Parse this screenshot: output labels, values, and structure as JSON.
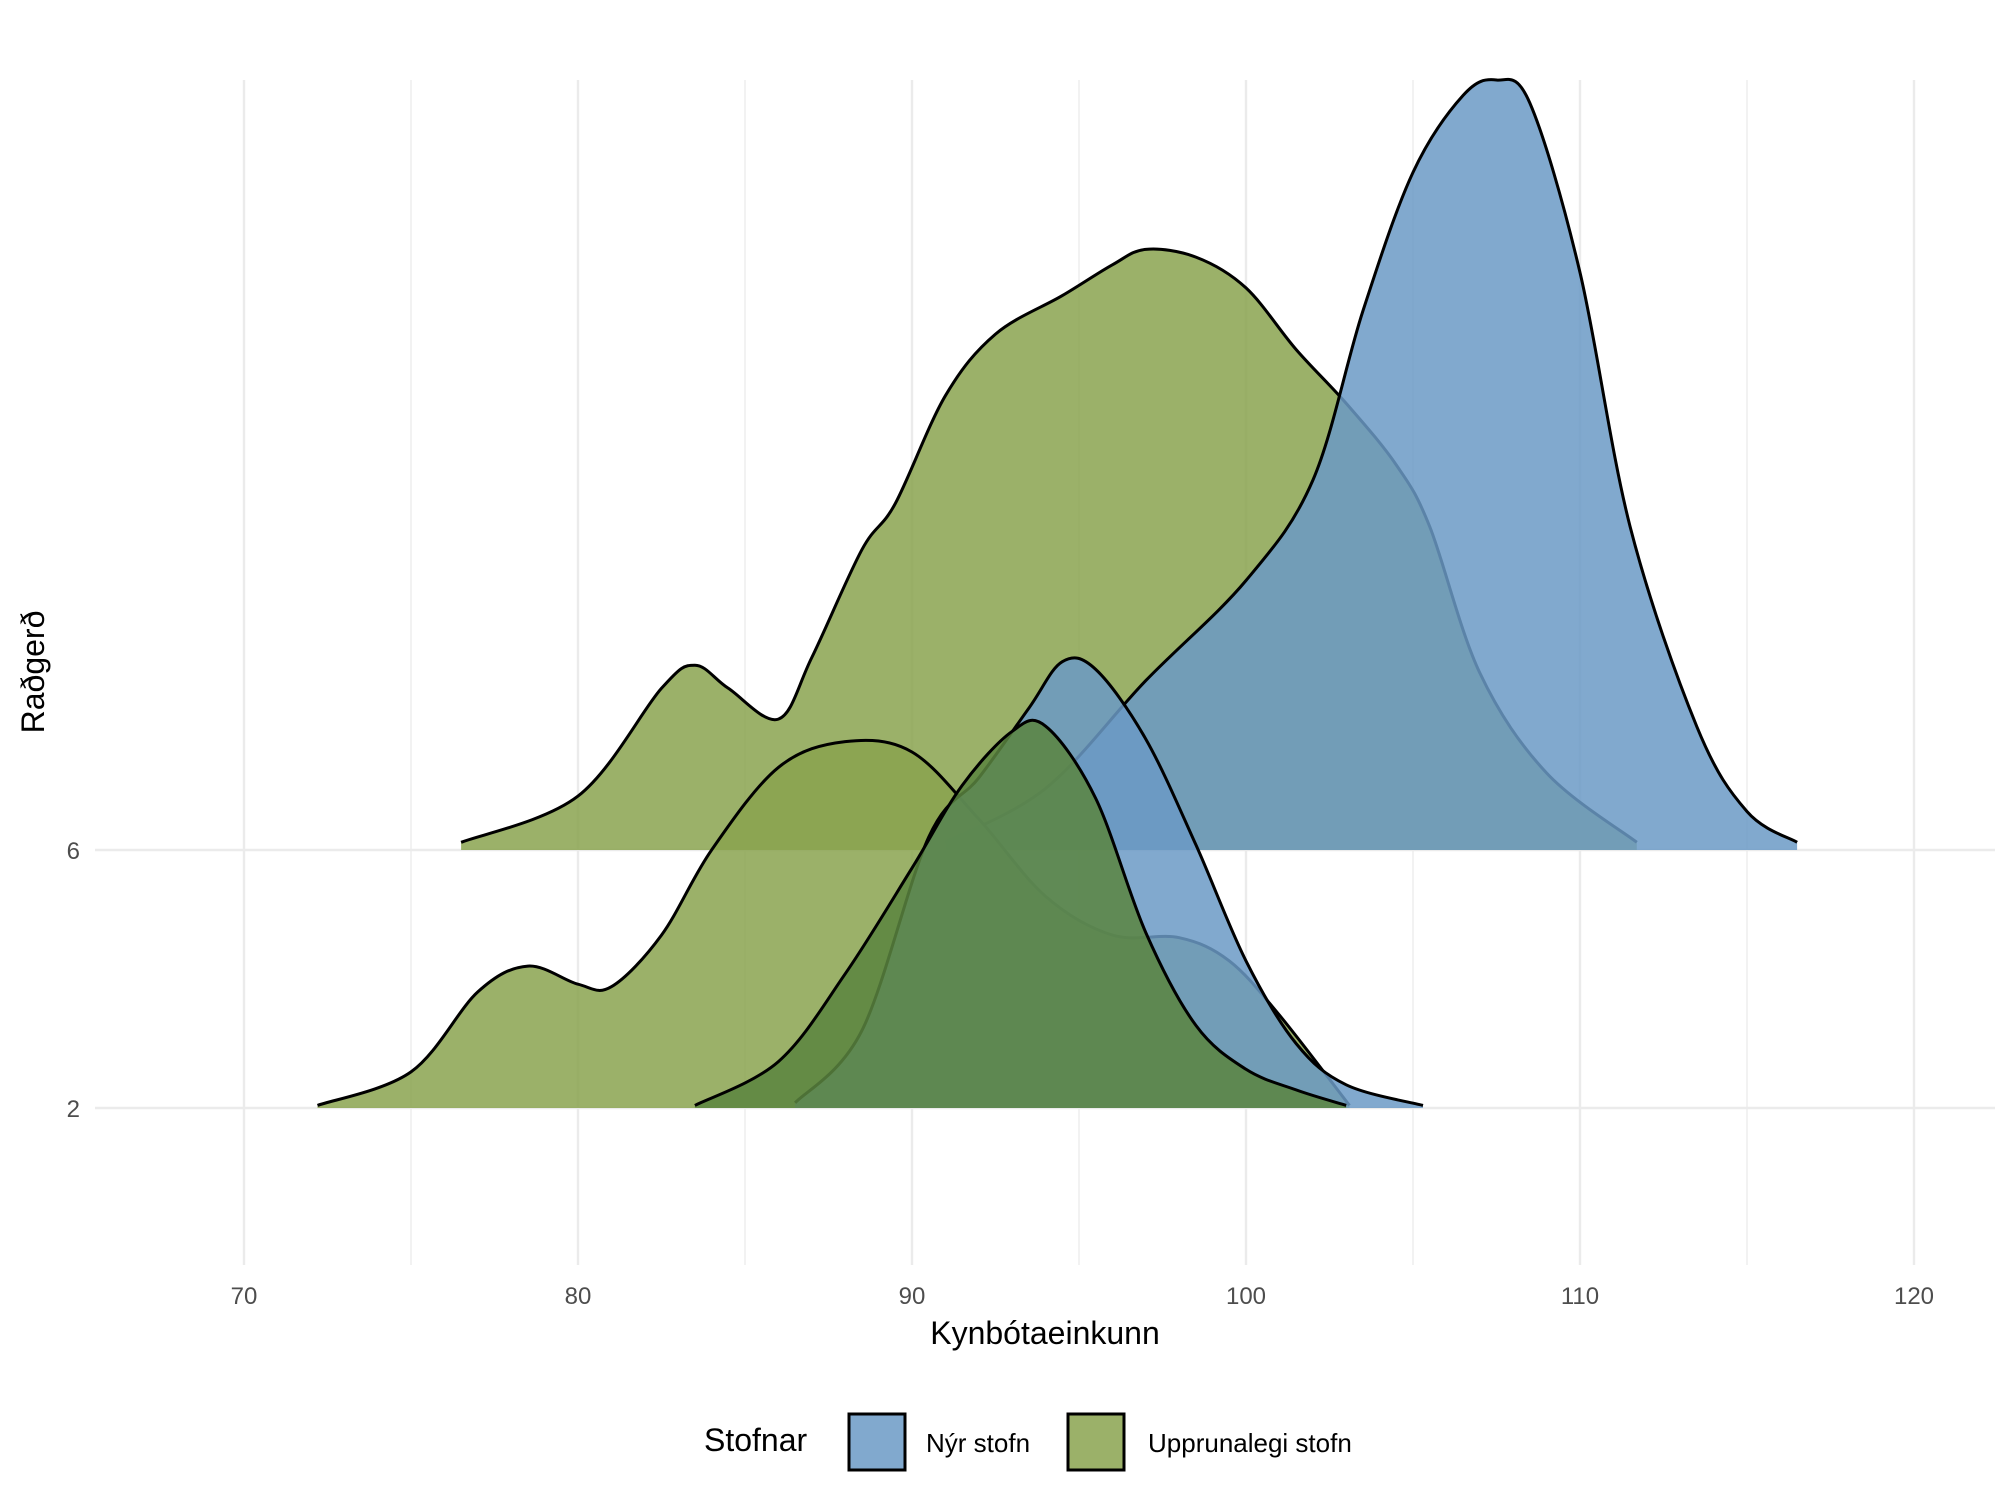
{
  "chart_data": {
    "type": "ridgeline",
    "title": "",
    "xlabel": "Kynbótaeinkunn",
    "ylabel": "Raðgerð",
    "xlim": [
      65.5,
      122
    ],
    "x_ticks": [
      70,
      80,
      90,
      100,
      110,
      120
    ],
    "y_ticks": [
      "2",
      "6"
    ],
    "grid": true,
    "legend": {
      "title": "Stofnar",
      "placement": "bottom",
      "entries": [
        {
          "label": "Nýr stofn",
          "color": "#6b9ac6"
        },
        {
          "label": "Upprunalegi stofn",
          "color": "#8aa34f"
        }
      ]
    },
    "series": [
      {
        "name": "Upprunalegi stofn",
        "ridge": "6",
        "color": "#8aa34f",
        "x": [
          76.5,
          80,
          82.5,
          83.5,
          84.5,
          86,
          87,
          88.5,
          89.5,
          91,
          92.5,
          94.5,
          96,
          97,
          98.5,
          100,
          101.5,
          103,
          104.5,
          105.5,
          107,
          109,
          111.7
        ],
        "density": [
          0.01,
          0.07,
          0.21,
          0.24,
          0.21,
          0.17,
          0.25,
          0.39,
          0.45,
          0.59,
          0.67,
          0.72,
          0.76,
          0.78,
          0.77,
          0.73,
          0.65,
          0.58,
          0.5,
          0.42,
          0.23,
          0.1,
          0.01
        ]
      },
      {
        "name": "Nýr stofn",
        "ridge": "6",
        "color": "#6b9ac6",
        "x": [
          91,
          94,
          97,
          100,
          102,
          103.5,
          105,
          106.5,
          107.5,
          108.5,
          110,
          111.5,
          113.5,
          115,
          116.5
        ],
        "density": [
          0.01,
          0.08,
          0.22,
          0.35,
          0.48,
          0.7,
          0.88,
          0.98,
          1.0,
          0.97,
          0.75,
          0.42,
          0.16,
          0.05,
          0.01
        ]
      },
      {
        "name": "Upprunalegi stofn",
        "ridge": "2",
        "color": "#8aa34f",
        "x": [
          72.2,
          75,
          77,
          78.5,
          80,
          81,
          82.5,
          84,
          86,
          88,
          90,
          92,
          94,
          96,
          98,
          99.5,
          101,
          103.1
        ],
        "density": [
          0.01,
          0.14,
          0.45,
          0.55,
          0.48,
          0.47,
          0.67,
          1.0,
          1.32,
          1.42,
          1.38,
          1.12,
          0.82,
          0.67,
          0.66,
          0.57,
          0.36,
          0.01
        ]
      },
      {
        "name": "Nýr stofn",
        "ridge": "2",
        "color": "#6b9ac6",
        "x": [
          86.5,
          88.5,
          90.5,
          92,
          93.5,
          94.5,
          95.5,
          97,
          98.5,
          100,
          101.5,
          103,
          105.3
        ],
        "density": [
          0.02,
          0.3,
          1.05,
          1.28,
          1.55,
          1.73,
          1.7,
          1.43,
          1.02,
          0.57,
          0.25,
          0.09,
          0.01
        ]
      },
      {
        "name": "Nýr stofn",
        "ridge": "2",
        "color": "#5a8540",
        "x": [
          83.5,
          86,
          88,
          90,
          91.5,
          93,
          94,
          95.5,
          97,
          98.5,
          100,
          101.5,
          103
        ],
        "density": [
          0.01,
          0.18,
          0.52,
          0.93,
          1.25,
          1.46,
          1.48,
          1.2,
          0.68,
          0.32,
          0.15,
          0.07,
          0.01
        ]
      }
    ]
  }
}
